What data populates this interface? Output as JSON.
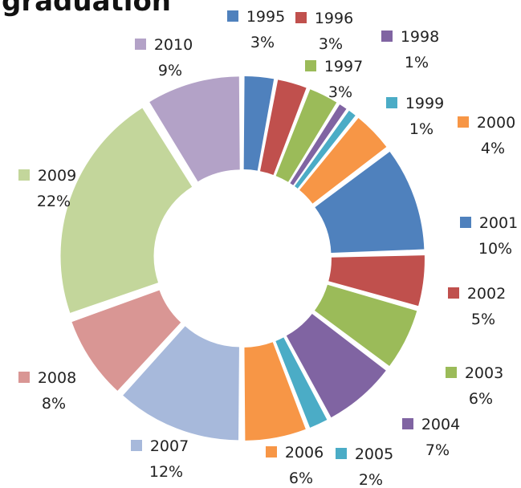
{
  "chart_data": {
    "type": "donut",
    "title": "graduation",
    "categories": [
      "1995",
      "1996",
      "1997",
      "1998",
      "1999",
      "2000",
      "2001",
      "2002",
      "2003",
      "2004",
      "2005",
      "2006",
      "2007",
      "2008",
      "2009",
      "2010"
    ],
    "values": [
      3,
      3,
      3,
      1,
      1,
      4,
      10,
      5,
      6,
      7,
      2,
      6,
      12,
      8,
      22,
      9
    ],
    "value_labels": [
      "3%",
      "3%",
      "3%",
      "1%",
      "1%",
      "4%",
      "10%",
      "5%",
      "6%",
      "7%",
      "2%",
      "6%",
      "12%",
      "8%",
      "22%",
      "9%"
    ],
    "colors": [
      "#4F81BD",
      "#C0504D",
      "#9BBB59",
      "#8064A2",
      "#4BACC6",
      "#F79646",
      "#4F81BD",
      "#C0504D",
      "#9BBB59",
      "#8064A2",
      "#4BACC6",
      "#F79646",
      "#A7B9DB",
      "#D99694",
      "#C3D69B",
      "#B3A2C7"
    ]
  }
}
